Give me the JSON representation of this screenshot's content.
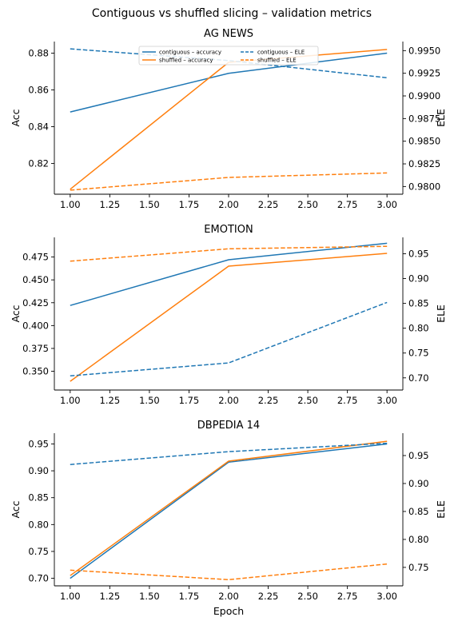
{
  "figure": {
    "suptitle": "Contiguous vs shuffled slicing – validation metrics",
    "xlabel": "Epoch"
  },
  "colors": {
    "contiguous": "#1f77b4",
    "shuffled": "#ff7f0e"
  },
  "legend": {
    "entries": [
      "contiguous – accuracy",
      "shuffled – accuracy",
      "contiguous – ELE",
      "shuffled – ELE"
    ]
  },
  "chart_data": [
    {
      "type": "line",
      "title": "AG NEWS",
      "ylabel": "Acc",
      "y2label": "ELE",
      "x": [
        1,
        2,
        3
      ],
      "xlim": [
        0.9,
        3.1
      ],
      "xticks": [
        "1.00",
        "1.25",
        "1.50",
        "1.75",
        "2.00",
        "2.25",
        "2.50",
        "2.75",
        "3.00"
      ],
      "ylim": [
        0.8033,
        0.8863
      ],
      "yticks": [
        "0.82",
        "0.84",
        "0.86",
        "0.88"
      ],
      "y2lim": [
        0.97915,
        0.996
      ],
      "y2ticks": [
        "0.9800",
        "0.9825",
        "0.9850",
        "0.9875",
        "0.9900",
        "0.9925",
        "0.9950"
      ],
      "grid": false,
      "legend_position": "top-center",
      "series": [
        {
          "name": "contiguous – accuracy",
          "axis": "left",
          "style": "solid",
          "values": [
            0.848,
            0.869,
            0.88
          ]
        },
        {
          "name": "shuffled – accuracy",
          "axis": "left",
          "style": "solid",
          "values": [
            0.806,
            0.875,
            0.882
          ]
        },
        {
          "name": "contiguous – ELE",
          "axis": "right",
          "style": "dashed",
          "values": [
            0.9952,
            0.9939,
            0.992
          ]
        },
        {
          "name": "shuffled – ELE",
          "axis": "right",
          "style": "dashed",
          "values": [
            0.9796,
            0.981,
            0.9815
          ]
        }
      ]
    },
    {
      "type": "line",
      "title": "EMOTION",
      "ylabel": "Acc",
      "y2label": "ELE",
      "x": [
        1,
        2,
        3
      ],
      "xlim": [
        0.9,
        3.1
      ],
      "xticks": [
        "1.00",
        "1.25",
        "1.50",
        "1.75",
        "2.00",
        "2.25",
        "2.50",
        "2.75",
        "3.00"
      ],
      "ylim": [
        0.3295,
        0.4965
      ],
      "yticks": [
        "0.350",
        "0.375",
        "0.400",
        "0.425",
        "0.450",
        "0.475"
      ],
      "y2lim": [
        0.6755,
        0.983
      ],
      "y2ticks": [
        "0.70",
        "0.75",
        "0.80",
        "0.85",
        "0.90",
        "0.95"
      ],
      "grid": false,
      "series": [
        {
          "name": "contiguous – accuracy",
          "axis": "left",
          "style": "solid",
          "values": [
            0.422,
            0.472,
            0.49
          ]
        },
        {
          "name": "shuffled – accuracy",
          "axis": "left",
          "style": "solid",
          "values": [
            0.339,
            0.465,
            0.479
          ]
        },
        {
          "name": "contiguous – ELE",
          "axis": "right",
          "style": "dashed",
          "values": [
            0.704,
            0.73,
            0.852
          ]
        },
        {
          "name": "shuffled – ELE",
          "axis": "right",
          "style": "dashed",
          "values": [
            0.935,
            0.96,
            0.965
          ]
        }
      ]
    },
    {
      "type": "line",
      "title": "DBPEDIA 14",
      "ylabel": "Acc",
      "y2label": "ELE",
      "x": [
        1,
        2,
        3
      ],
      "xlim": [
        0.9,
        3.1
      ],
      "xticks": [
        "1.00",
        "1.25",
        "1.50",
        "1.75",
        "2.00",
        "2.25",
        "2.50",
        "2.75",
        "3.00"
      ],
      "ylim": [
        0.686,
        0.97
      ],
      "yticks": [
        "0.70",
        "0.75",
        "0.80",
        "0.85",
        "0.90",
        "0.95"
      ],
      "y2lim": [
        0.717,
        0.99
      ],
      "y2ticks": [
        "0.75",
        "0.80",
        "0.85",
        "0.90",
        "0.95"
      ],
      "grid": false,
      "series": [
        {
          "name": "contiguous – accuracy",
          "axis": "left",
          "style": "solid",
          "values": [
            0.7,
            0.916,
            0.95
          ]
        },
        {
          "name": "shuffled – accuracy",
          "axis": "left",
          "style": "solid",
          "values": [
            0.705,
            0.918,
            0.955
          ]
        },
        {
          "name": "contiguous – ELE",
          "axis": "right",
          "style": "dashed",
          "values": [
            0.934,
            0.957,
            0.972
          ]
        },
        {
          "name": "shuffled – ELE",
          "axis": "right",
          "style": "dashed",
          "values": [
            0.745,
            0.728,
            0.756
          ]
        }
      ]
    }
  ]
}
